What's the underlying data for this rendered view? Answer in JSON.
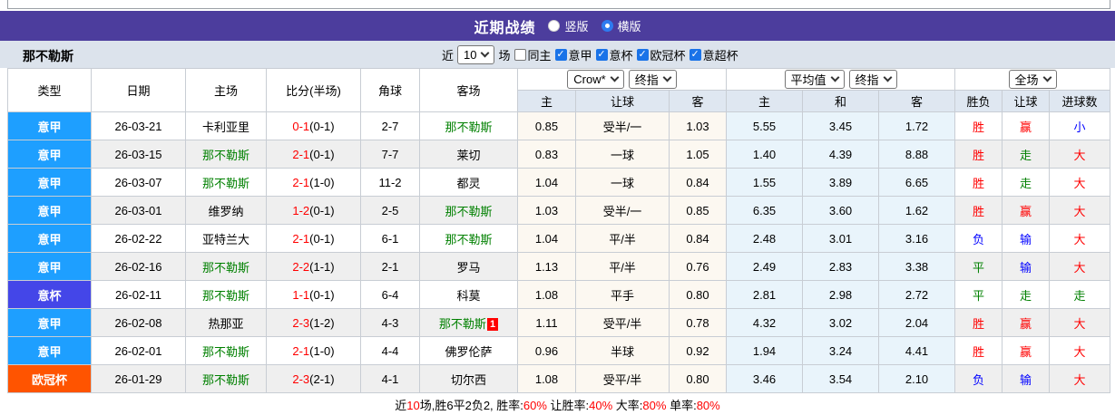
{
  "title_bar": {
    "title": "近期战绩",
    "view_options": [
      {
        "label": "竖版",
        "selected": false
      },
      {
        "label": "横版",
        "selected": true
      }
    ]
  },
  "filter_bar": {
    "team_name": "那不勒斯",
    "recent_prefix": "近",
    "recent_count": "10",
    "recent_suffix": "场",
    "same_home": {
      "label": "同主",
      "checked": false
    },
    "leagues": [
      {
        "label": "意甲",
        "checked": true
      },
      {
        "label": "意杯",
        "checked": true
      },
      {
        "label": "欧冠杯",
        "checked": true
      },
      {
        "label": "意超杯",
        "checked": true
      }
    ]
  },
  "table": {
    "headers": {
      "type": "类型",
      "date": "日期",
      "home": "主场",
      "score": "比分(半场)",
      "corner": "角球",
      "away": "客场",
      "asian": {
        "selects": [
          "Crow*",
          "终指"
        ],
        "cols": [
          "主",
          "让球",
          "客"
        ]
      },
      "euro": {
        "selects": [
          "平均值",
          "终指"
        ],
        "cols": [
          "主",
          "和",
          "客"
        ]
      },
      "result": {
        "selects": [
          "全场"
        ],
        "cols": [
          "胜负",
          "让球",
          "进球数"
        ]
      }
    },
    "rows": [
      {
        "league": {
          "t": "意甲",
          "k": "seriea"
        },
        "date": "26-03-21",
        "home": {
          "t": "卡利亚里",
          "team": false
        },
        "score": {
          "m": "0-1",
          "h": "(0-1)"
        },
        "corner": "2-7",
        "away": {
          "t": "那不勒斯",
          "team": true
        },
        "odds_asian": [
          "0.85",
          "受半/一",
          "1.03"
        ],
        "odds_euro": [
          "5.55",
          "3.45",
          "1.72"
        ],
        "result": [
          {
            "t": "胜",
            "c": "red"
          },
          {
            "t": "赢",
            "c": "red"
          },
          {
            "t": "小",
            "c": "blue"
          }
        ]
      },
      {
        "league": {
          "t": "意甲",
          "k": "seriea"
        },
        "date": "26-03-15",
        "home": {
          "t": "那不勒斯",
          "team": true
        },
        "score": {
          "m": "2-1",
          "h": "(0-1)"
        },
        "corner": "7-7",
        "away": {
          "t": "莱切",
          "team": false
        },
        "odds_asian": [
          "0.83",
          "一球",
          "1.05"
        ],
        "odds_euro": [
          "1.40",
          "4.39",
          "8.88"
        ],
        "result": [
          {
            "t": "胜",
            "c": "red"
          },
          {
            "t": "走",
            "c": "green"
          },
          {
            "t": "大",
            "c": "red"
          }
        ]
      },
      {
        "league": {
          "t": "意甲",
          "k": "seriea"
        },
        "date": "26-03-07",
        "home": {
          "t": "那不勒斯",
          "team": true
        },
        "score": {
          "m": "2-1",
          "h": "(1-0)"
        },
        "corner": "11-2",
        "away": {
          "t": "都灵",
          "team": false
        },
        "odds_asian": [
          "1.04",
          "一球",
          "0.84"
        ],
        "odds_euro": [
          "1.55",
          "3.89",
          "6.65"
        ],
        "result": [
          {
            "t": "胜",
            "c": "red"
          },
          {
            "t": "走",
            "c": "green"
          },
          {
            "t": "大",
            "c": "red"
          }
        ]
      },
      {
        "league": {
          "t": "意甲",
          "k": "seriea"
        },
        "date": "26-03-01",
        "home": {
          "t": "维罗纳",
          "team": false
        },
        "score": {
          "m": "1-2",
          "h": "(0-1)"
        },
        "corner": "2-5",
        "away": {
          "t": "那不勒斯",
          "team": true
        },
        "odds_asian": [
          "1.03",
          "受半/一",
          "0.85"
        ],
        "odds_euro": [
          "6.35",
          "3.60",
          "1.62"
        ],
        "result": [
          {
            "t": "胜",
            "c": "red"
          },
          {
            "t": "赢",
            "c": "red"
          },
          {
            "t": "大",
            "c": "red"
          }
        ]
      },
      {
        "league": {
          "t": "意甲",
          "k": "seriea"
        },
        "date": "26-02-22",
        "home": {
          "t": "亚特兰大",
          "team": false
        },
        "score": {
          "m": "2-1",
          "h": "(0-1)"
        },
        "corner": "6-1",
        "away": {
          "t": "那不勒斯",
          "team": true
        },
        "odds_asian": [
          "1.04",
          "平/半",
          "0.84"
        ],
        "odds_euro": [
          "2.48",
          "3.01",
          "3.16"
        ],
        "result": [
          {
            "t": "负",
            "c": "blue"
          },
          {
            "t": "输",
            "c": "blue"
          },
          {
            "t": "大",
            "c": "red"
          }
        ]
      },
      {
        "league": {
          "t": "意甲",
          "k": "seriea"
        },
        "date": "26-02-16",
        "home": {
          "t": "那不勒斯",
          "team": true
        },
        "score": {
          "m": "2-2",
          "h": "(1-1)"
        },
        "corner": "2-1",
        "away": {
          "t": "罗马",
          "team": false
        },
        "odds_asian": [
          "1.13",
          "平/半",
          "0.76"
        ],
        "odds_euro": [
          "2.49",
          "2.83",
          "3.38"
        ],
        "result": [
          {
            "t": "平",
            "c": "green"
          },
          {
            "t": "输",
            "c": "blue"
          },
          {
            "t": "大",
            "c": "red"
          }
        ]
      },
      {
        "league": {
          "t": "意杯",
          "k": "cup"
        },
        "date": "26-02-11",
        "home": {
          "t": "那不勒斯",
          "team": true
        },
        "score": {
          "m": "1-1",
          "h": "(0-1)"
        },
        "corner": "6-4",
        "away": {
          "t": "科莫",
          "team": false
        },
        "odds_asian": [
          "1.08",
          "平手",
          "0.80"
        ],
        "odds_euro": [
          "2.81",
          "2.98",
          "2.72"
        ],
        "result": [
          {
            "t": "平",
            "c": "green"
          },
          {
            "t": "走",
            "c": "green"
          },
          {
            "t": "走",
            "c": "green"
          }
        ]
      },
      {
        "league": {
          "t": "意甲",
          "k": "seriea"
        },
        "date": "26-02-08",
        "home": {
          "t": "热那亚",
          "team": false
        },
        "score": {
          "m": "2-3",
          "h": "(1-2)"
        },
        "corner": "4-3",
        "away": {
          "t": "那不勒斯",
          "team": true,
          "badge": "1"
        },
        "odds_asian": [
          "1.11",
          "受平/半",
          "0.78"
        ],
        "odds_euro": [
          "4.32",
          "3.02",
          "2.04"
        ],
        "result": [
          {
            "t": "胜",
            "c": "red"
          },
          {
            "t": "赢",
            "c": "red"
          },
          {
            "t": "大",
            "c": "red"
          }
        ]
      },
      {
        "league": {
          "t": "意甲",
          "k": "seriea"
        },
        "date": "26-02-01",
        "home": {
          "t": "那不勒斯",
          "team": true
        },
        "score": {
          "m": "2-1",
          "h": "(1-0)"
        },
        "corner": "4-4",
        "away": {
          "t": "佛罗伦萨",
          "team": false
        },
        "odds_asian": [
          "0.96",
          "半球",
          "0.92"
        ],
        "odds_euro": [
          "1.94",
          "3.24",
          "4.41"
        ],
        "result": [
          {
            "t": "胜",
            "c": "red"
          },
          {
            "t": "赢",
            "c": "red"
          },
          {
            "t": "大",
            "c": "red"
          }
        ]
      },
      {
        "league": {
          "t": "欧冠杯",
          "k": "ucl"
        },
        "date": "26-01-29",
        "home": {
          "t": "那不勒斯",
          "team": true
        },
        "score": {
          "m": "2-3",
          "h": "(2-1)"
        },
        "corner": "4-1",
        "away": {
          "t": "切尔西",
          "team": false
        },
        "odds_asian": [
          "1.08",
          "受平/半",
          "0.80"
        ],
        "odds_euro": [
          "3.46",
          "3.54",
          "2.10"
        ],
        "result": [
          {
            "t": "负",
            "c": "blue"
          },
          {
            "t": "输",
            "c": "blue"
          },
          {
            "t": "大",
            "c": "red"
          }
        ]
      }
    ]
  },
  "summary": {
    "segments": [
      {
        "t": "近",
        "c": "k"
      },
      {
        "t": "10",
        "c": "r"
      },
      {
        "t": "场,胜6平2负2, 胜率:",
        "c": "k"
      },
      {
        "t": "60%",
        "c": "r"
      },
      {
        "t": " 让胜率:",
        "c": "k"
      },
      {
        "t": "40%",
        "c": "r"
      },
      {
        "t": " 大率:",
        "c": "k"
      },
      {
        "t": "80%",
        "c": "r"
      },
      {
        "t": " 单率:",
        "c": "k"
      },
      {
        "t": "80%",
        "c": "r"
      }
    ]
  },
  "colors": {
    "league": {
      "seriea": "#1e9fff",
      "cup": "#4446e8",
      "ucl": "#ff5400"
    },
    "accent_purple": "#4c3d9d",
    "win_red": "#ff0000",
    "lose_blue": "#0000ff",
    "draw_green": "#008000",
    "team_green": "#008000"
  }
}
